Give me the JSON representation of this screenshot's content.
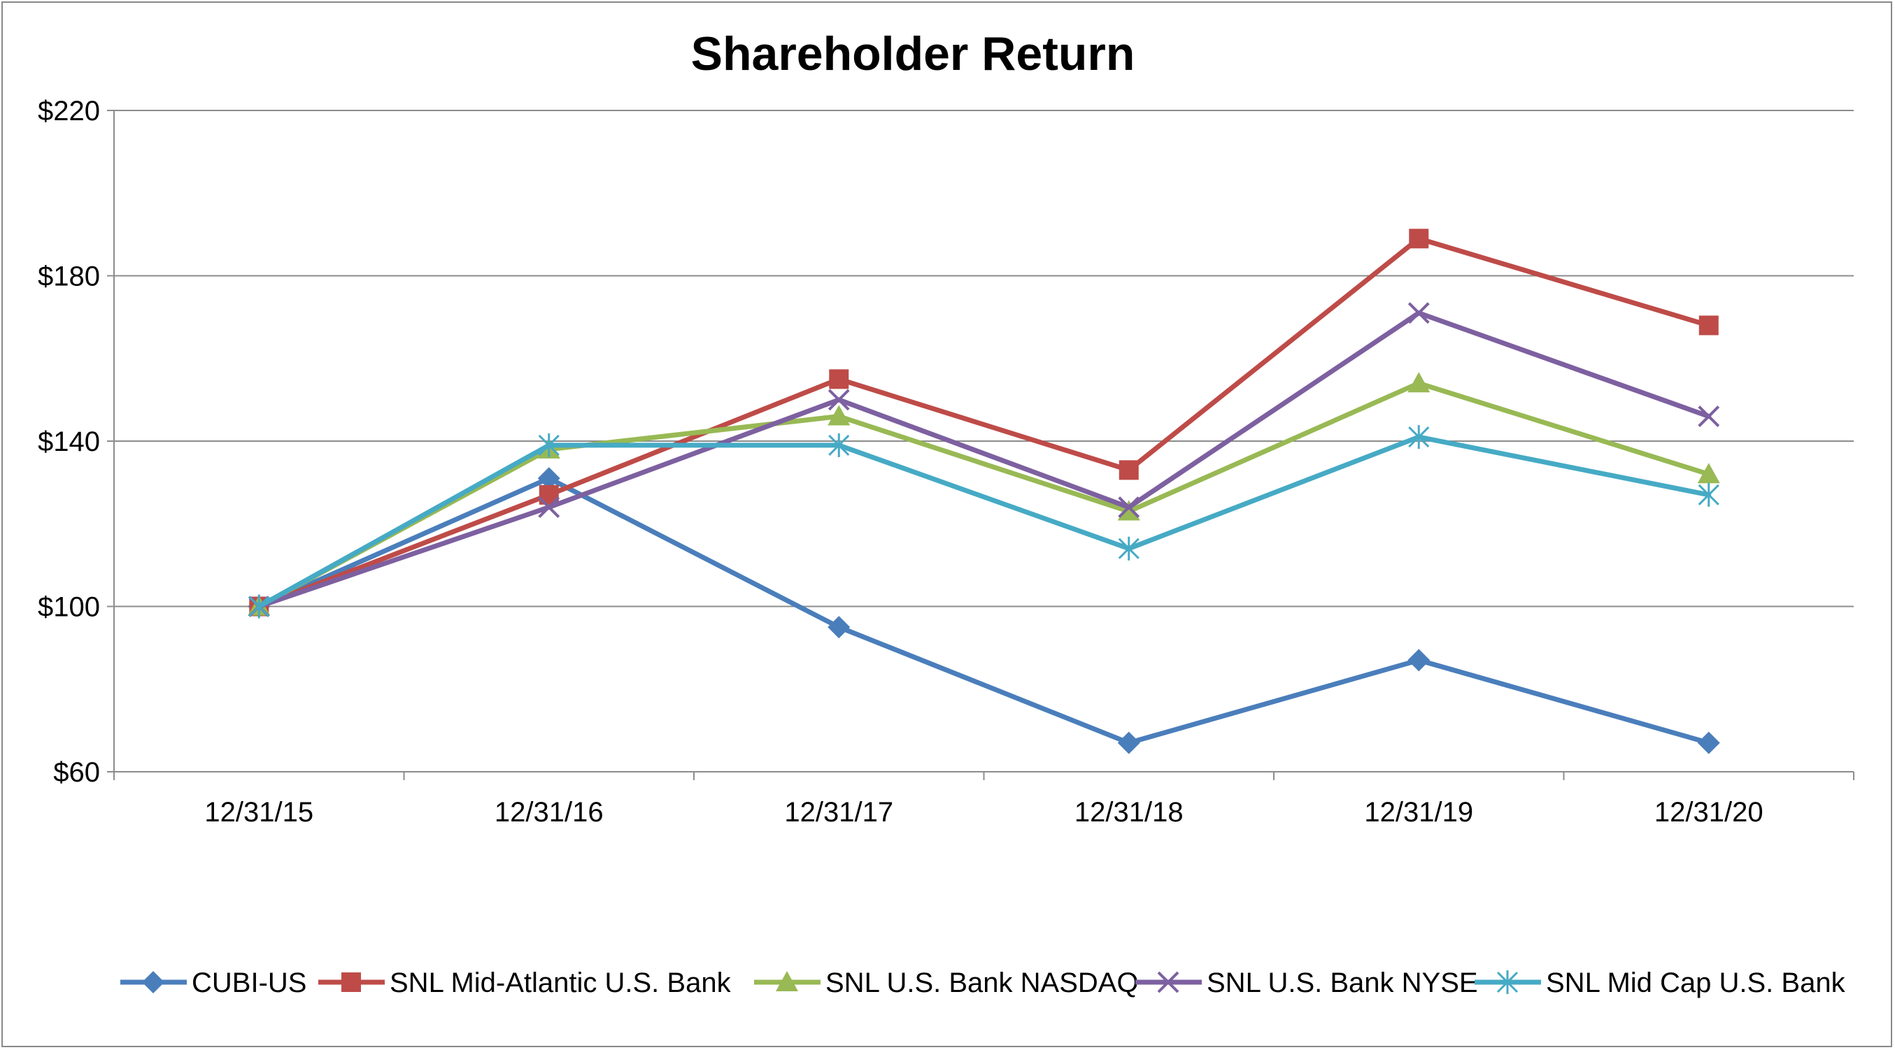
{
  "chart_data": {
    "type": "line",
    "title": "Shareholder Return",
    "xlabel": "",
    "ylabel": "",
    "categories": [
      "12/31/15",
      "12/31/16",
      "12/31/17",
      "12/31/18",
      "12/31/19",
      "12/31/20"
    ],
    "ylim": [
      60,
      220
    ],
    "yticks": [
      60,
      100,
      140,
      180,
      220
    ],
    "ytick_labels": [
      "$60",
      "$100",
      "$140",
      "$180",
      "$220"
    ],
    "grid": true,
    "legend_position": "bottom",
    "series": [
      {
        "name": "CUBI-US",
        "color": "#4A7EBB",
        "marker": "diamond",
        "values": [
          100,
          131,
          95,
          67,
          87,
          67
        ]
      },
      {
        "name": "SNL Mid-Atlantic U.S. Bank",
        "color": "#BE4B48",
        "marker": "square",
        "values": [
          100,
          127,
          155,
          133,
          189,
          168
        ]
      },
      {
        "name": "SNL U.S. Bank NASDAQ",
        "color": "#98B954",
        "marker": "triangle",
        "values": [
          100,
          138,
          146,
          123,
          154,
          132
        ]
      },
      {
        "name": "SNL U.S. Bank NYSE",
        "color": "#7D60A0",
        "marker": "x",
        "values": [
          100,
          124,
          150,
          124,
          171,
          146
        ]
      },
      {
        "name": "SNL Mid Cap U.S. Bank",
        "color": "#46AAC5",
        "marker": "star",
        "values": [
          100,
          139,
          139,
          114,
          141,
          127
        ]
      }
    ]
  }
}
